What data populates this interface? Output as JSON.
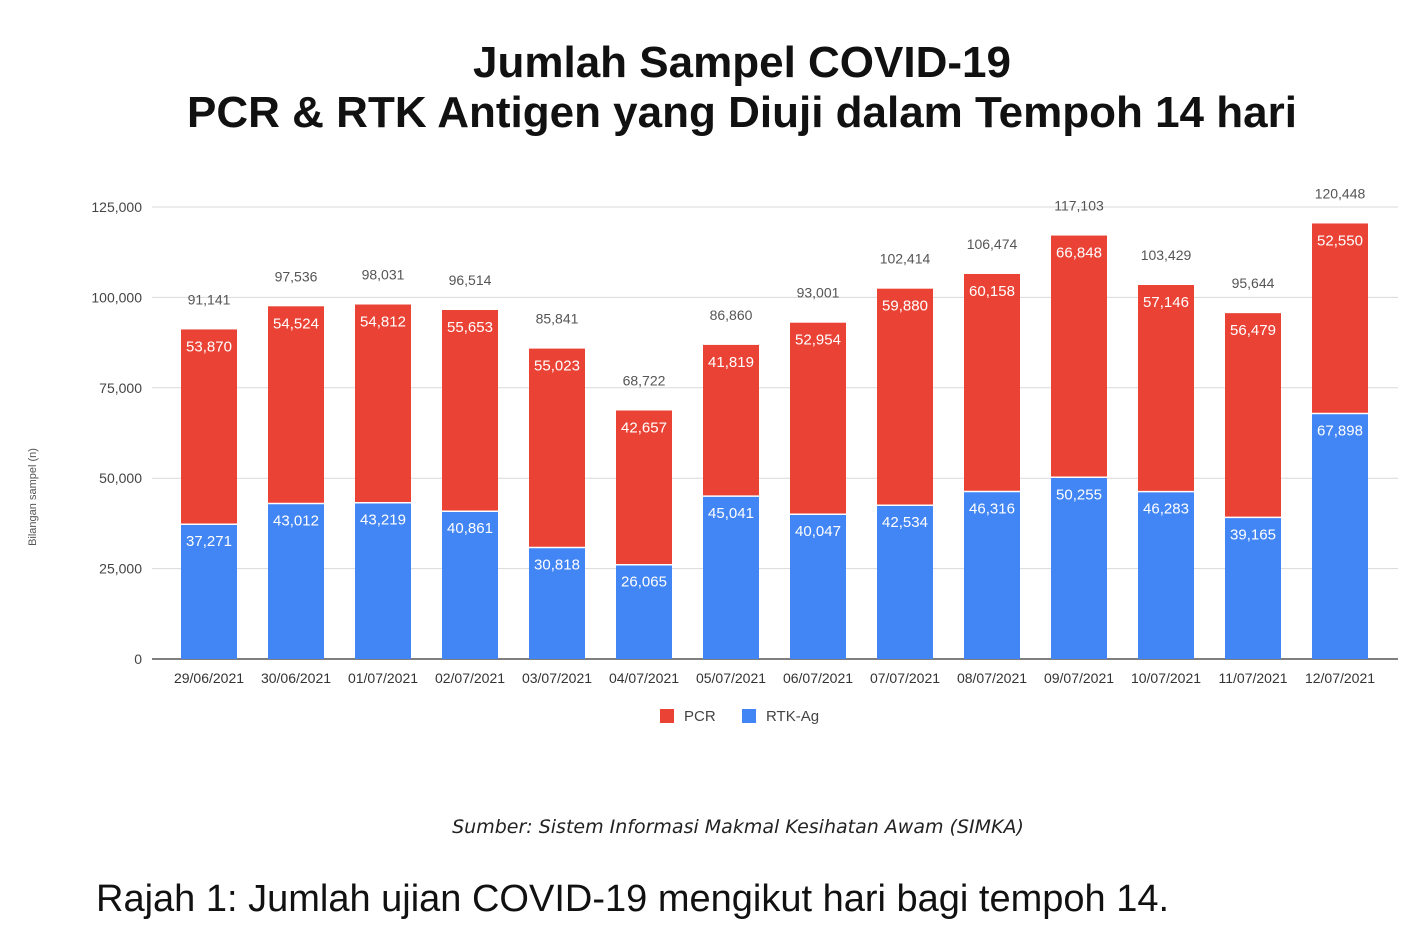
{
  "chart_data": {
    "type": "bar",
    "stacked": true,
    "title_line1": "Jumlah Sampel COVID-19",
    "title_line2": "PCR & RTK Antigen yang Diuji dalam Tempoh 14 hari",
    "ylabel": "Bilangan sampel (n)",
    "xlabel": "",
    "ylim": [
      0,
      125000
    ],
    "yticks": [
      "0",
      "25,000",
      "50,000",
      "75,000",
      "100,000",
      "125,000"
    ],
    "ytick_values": [
      0,
      25000,
      50000,
      75000,
      100000,
      125000
    ],
    "grid": true,
    "legend_position": "bottom",
    "categories": [
      "29/06/2021",
      "30/06/2021",
      "01/07/2021",
      "02/07/2021",
      "03/07/2021",
      "04/07/2021",
      "05/07/2021",
      "06/07/2021",
      "07/07/2021",
      "08/07/2021",
      "09/07/2021",
      "10/07/2021",
      "11/07/2021",
      "12/07/2021"
    ],
    "series": [
      {
        "name": "RTK-Ag",
        "color": "#4285f4",
        "values": [
          37271,
          43012,
          43219,
          40861,
          30818,
          26065,
          45041,
          40047,
          42534,
          46316,
          50255,
          46283,
          39165,
          67898
        ],
        "labels": [
          "37,271",
          "43,012",
          "43,219",
          "40,861",
          "30,818",
          "26,065",
          "45,041",
          "40,047",
          "42,534",
          "46,316",
          "50,255",
          "46,283",
          "39,165",
          "67,898"
        ]
      },
      {
        "name": "PCR",
        "color": "#ea4335",
        "values": [
          53870,
          54524,
          54812,
          55653,
          55023,
          42657,
          41819,
          52954,
          59880,
          60158,
          66848,
          57146,
          56479,
          52550
        ],
        "labels": [
          "53,870",
          "54,524",
          "54,812",
          "55,653",
          "55,023",
          "42,657",
          "41,819",
          "52,954",
          "59,880",
          "60,158",
          "66,848",
          "57,146",
          "56,479",
          "52,550"
        ]
      }
    ],
    "totals": [
      91141,
      97536,
      98031,
      96514,
      85841,
      68722,
      86860,
      93001,
      102414,
      106474,
      117103,
      103429,
      95644,
      120448
    ],
    "total_labels": [
      "91,141",
      "97,536",
      "98,031",
      "96,514",
      "85,841",
      "68,722",
      "86,860",
      "93,001",
      "102,414",
      "106,474",
      "117,103",
      "103,429",
      "95,644",
      "120,448"
    ],
    "legend": [
      {
        "name": "PCR",
        "color": "#ea4335"
      },
      {
        "name": "RTK-Ag",
        "color": "#4285f4"
      }
    ]
  },
  "source_text": "Sumber: Sistem Informasi Makmal Kesihatan Awam (SIMKA)",
  "caption_text": "Rajah 1: Jumlah ujian COVID-19 mengikut hari bagi tempoh 14."
}
